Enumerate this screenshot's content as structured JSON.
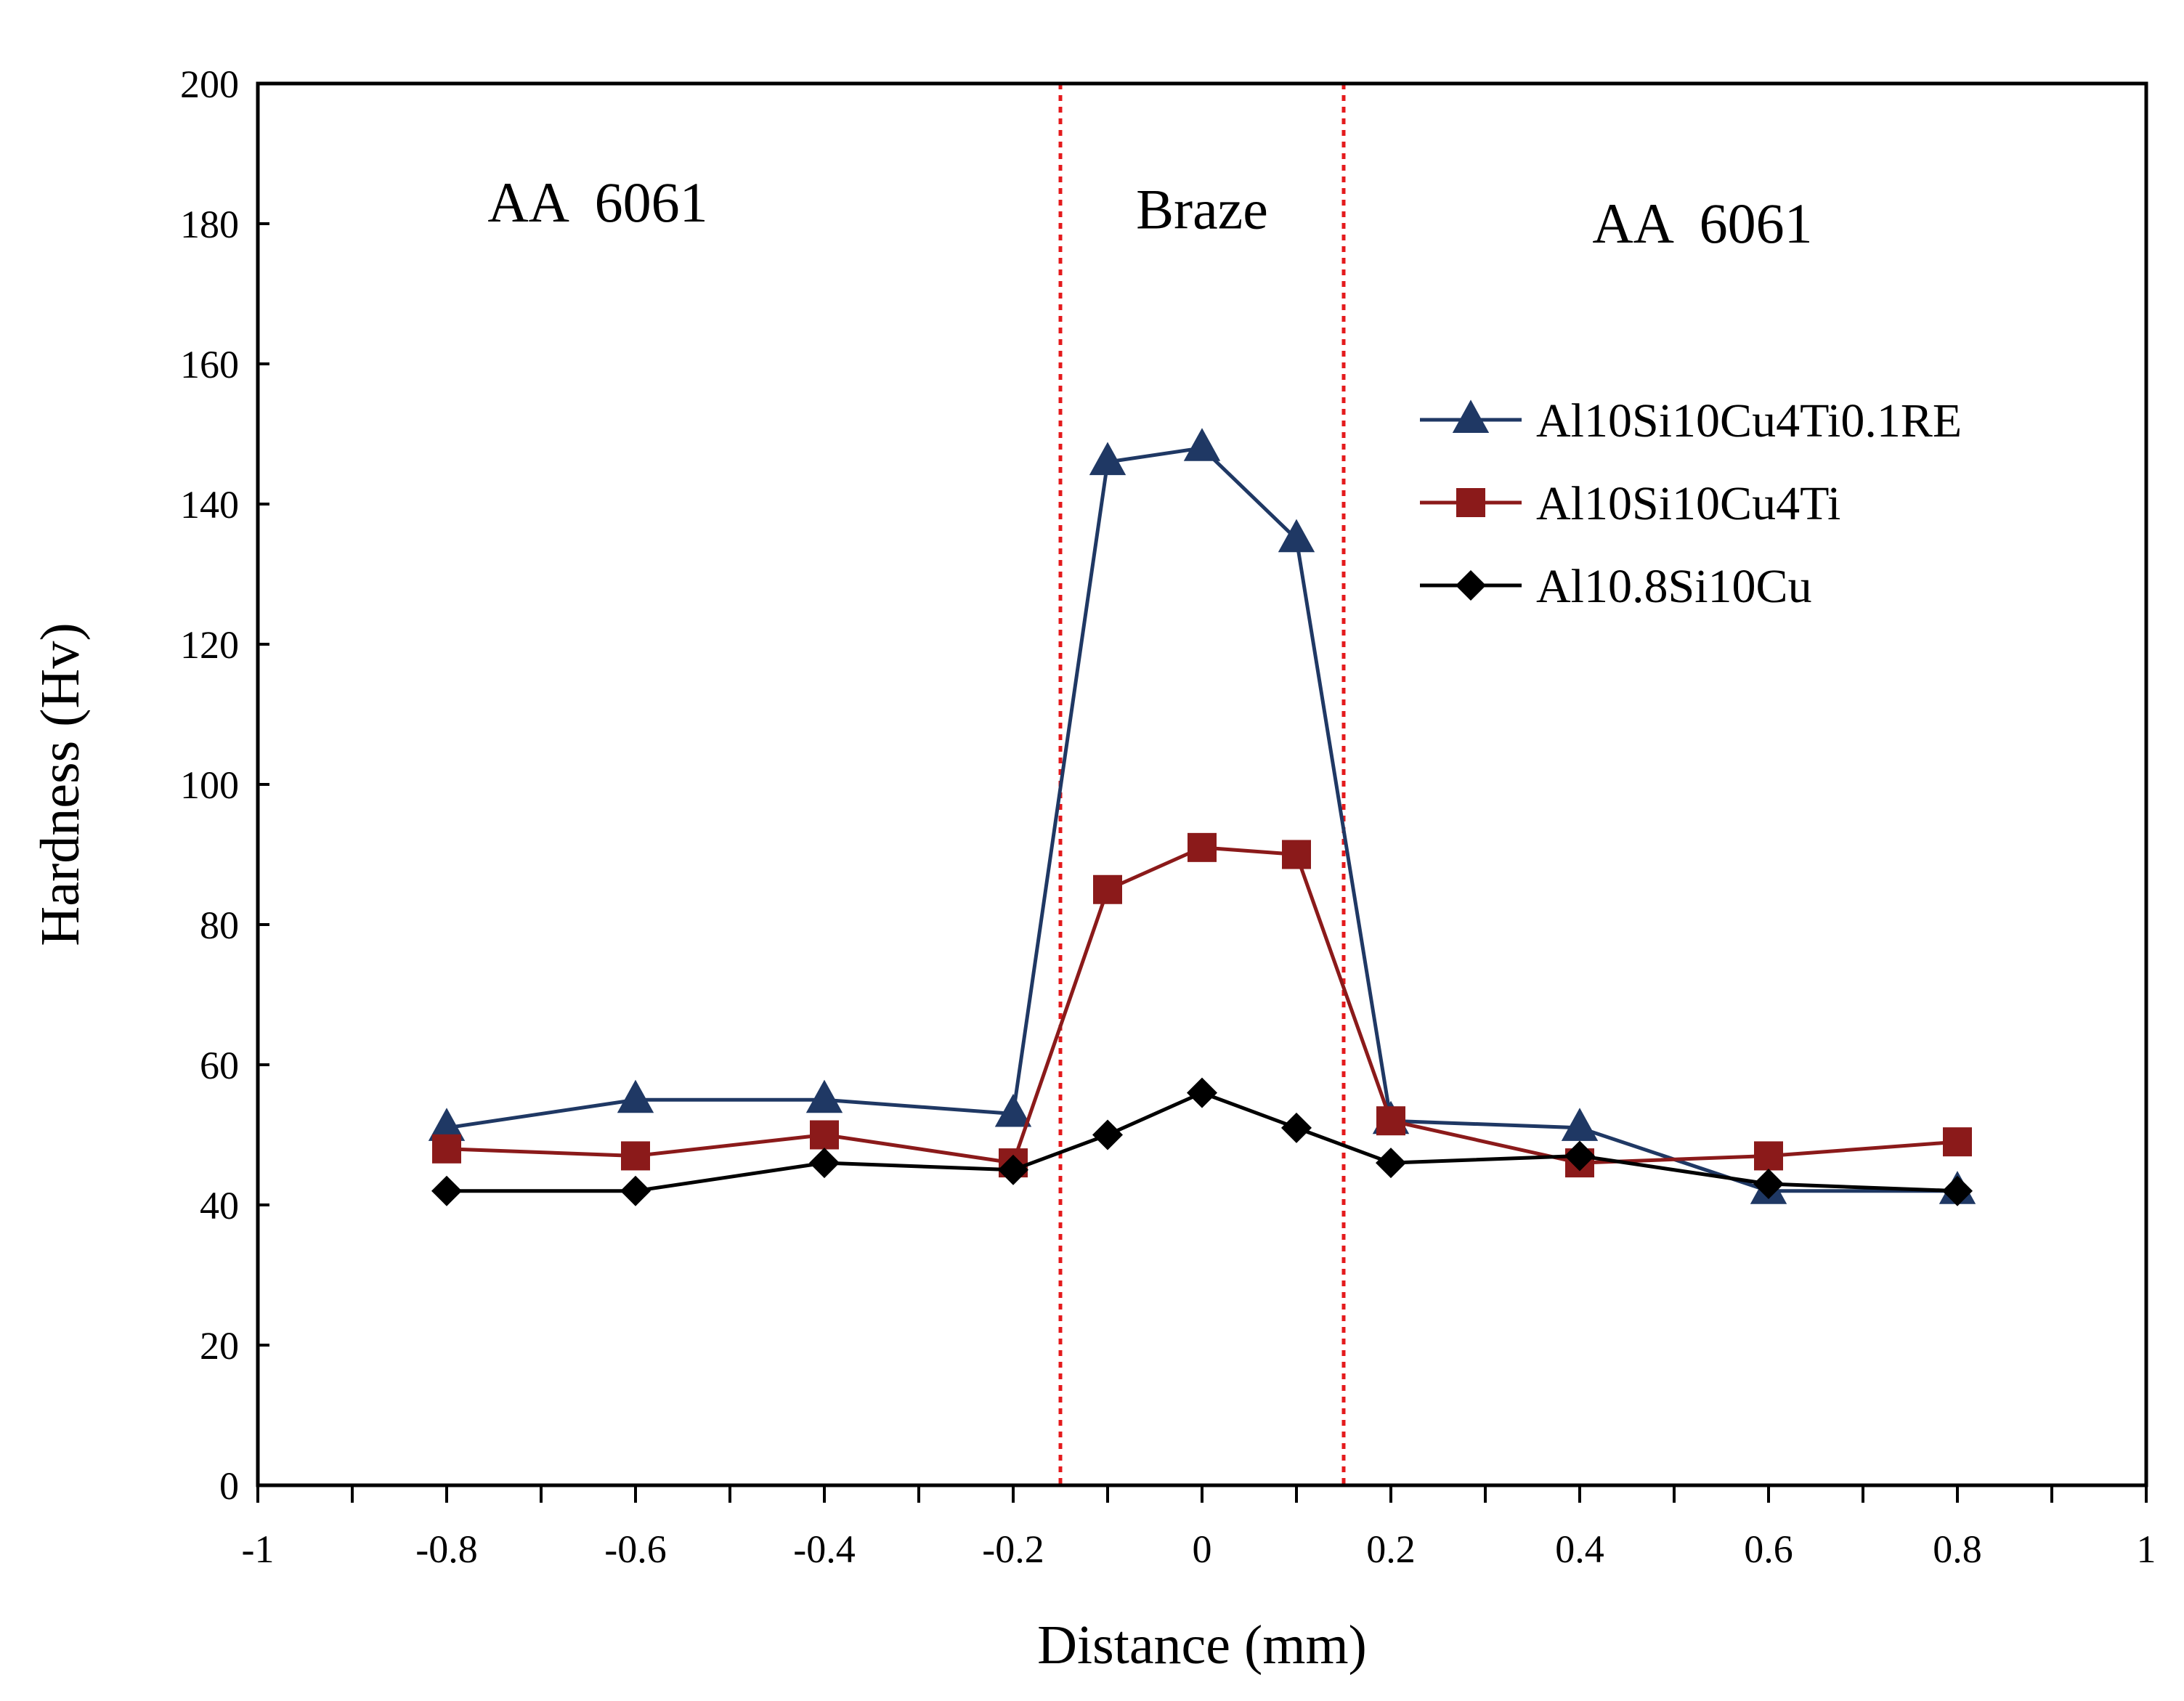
{
  "chart_data": {
    "type": "line",
    "title": "",
    "xlabel": "Distance (mm)",
    "ylabel": "Hardness (Hv)",
    "xlim": [
      -1,
      1
    ],
    "ylim": [
      0,
      200
    ],
    "xticks": [
      -1,
      -0.8,
      -0.6,
      -0.4,
      -0.2,
      0,
      0.2,
      0.4,
      0.6,
      0.8,
      1
    ],
    "xtick_labels": [
      "-1",
      "-0.8",
      "-0.6",
      "-0.4",
      "-0.2",
      "0",
      "0.2",
      "0.4",
      "0.6",
      "0.8",
      "1"
    ],
    "yticks": [
      0,
      20,
      40,
      60,
      80,
      100,
      120,
      140,
      160,
      180,
      200
    ],
    "ytick_labels": [
      "0",
      "20",
      "40",
      "60",
      "80",
      "100",
      "120",
      "140",
      "160",
      "180",
      "200"
    ],
    "grid": false,
    "legend_position": "right",
    "boundaries": [
      {
        "x": -0.15,
        "color": "#e41a1c",
        "style": "dotted"
      },
      {
        "x": 0.15,
        "color": "#e41a1c",
        "style": "dotted"
      }
    ],
    "annotations": [
      {
        "text": "AA  6061",
        "x": -0.64,
        "y": 183
      },
      {
        "text": "Braze",
        "x": 0.0,
        "y": 182
      },
      {
        "text": "AA  6061",
        "x": 0.53,
        "y": 180
      }
    ],
    "series": [
      {
        "name": "Al10Si10Cu4Ti0.1RE",
        "color": "#1f3864",
        "marker": "triangle",
        "x": [
          -0.8,
          -0.6,
          -0.4,
          -0.2,
          -0.1,
          0,
          0.1,
          0.2,
          0.4,
          0.6,
          0.8
        ],
        "y": [
          51,
          55,
          55,
          53,
          146,
          148,
          135,
          52,
          51,
          42,
          42
        ]
      },
      {
        "name": "Al10Si10Cu4Ti",
        "color": "#8b1a1a",
        "marker": "square",
        "x": [
          -0.8,
          -0.6,
          -0.4,
          -0.2,
          -0.1,
          0,
          0.1,
          0.2,
          0.4,
          0.6,
          0.8
        ],
        "y": [
          48,
          47,
          50,
          46,
          85,
          91,
          90,
          52,
          46,
          47,
          49
        ]
      },
      {
        "name": "Al10.8Si10Cu",
        "color": "#000000",
        "marker": "diamond",
        "x": [
          -0.8,
          -0.6,
          -0.4,
          -0.2,
          -0.1,
          0,
          0.1,
          0.2,
          0.4,
          0.6,
          0.8
        ],
        "y": [
          42,
          42,
          46,
          45,
          50,
          56,
          51,
          46,
          47,
          43,
          42
        ]
      }
    ]
  }
}
